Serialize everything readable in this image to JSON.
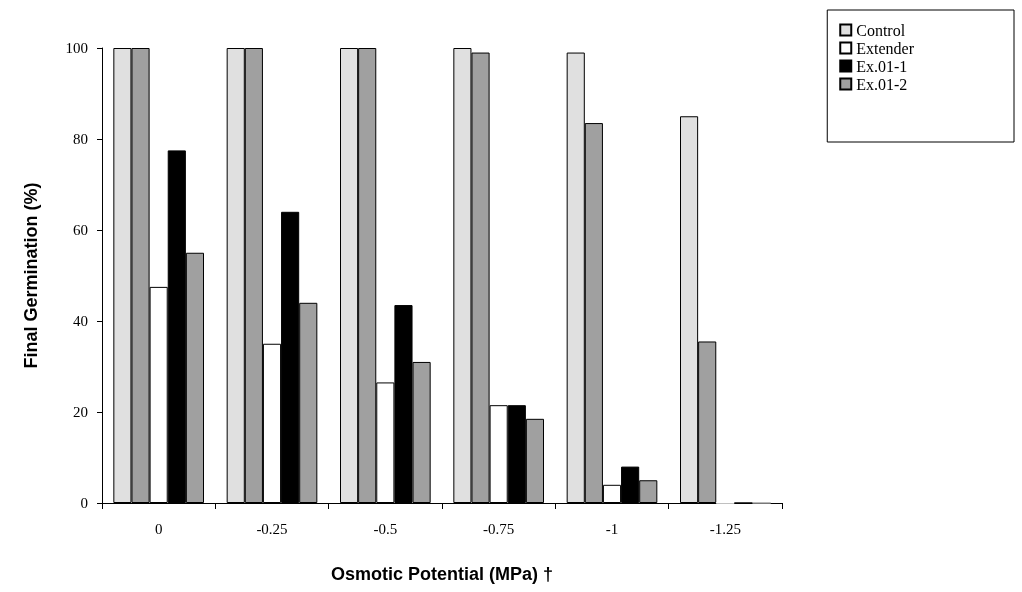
{
  "chart_data": {
    "type": "bar",
    "xlabel": "Osmotic Potential (MPa) †",
    "ylabel": "Final Germination (%)",
    "categories": [
      "0",
      "-0.25",
      "-0.5",
      "-0.75",
      "-1",
      "-1.25"
    ],
    "series": [
      {
        "name": "Control",
        "color": "#e0e0e0",
        "values": [
          100,
          100,
          100,
          100,
          99,
          85
        ]
      },
      {
        "color": "#a0a0a0",
        "values": [
          100,
          100,
          100,
          99,
          83.5,
          35.5
        ]
      },
      {
        "name": "Extender",
        "color": "#ffffff",
        "values": [
          47.5,
          35,
          26.5,
          21.5,
          4,
          0
        ]
      },
      {
        "name": "Ex.01-1",
        "color": "#000000",
        "values": [
          77.5,
          64,
          43.5,
          21.5,
          8,
          0
        ]
      },
      {
        "name": "Ex.01-2",
        "color": "#a0a0a0",
        "values": [
          55,
          44,
          31,
          18.5,
          5,
          0
        ]
      }
    ],
    "ylim": [
      0,
      100
    ],
    "yticks": [
      0,
      20,
      40,
      60,
      80,
      100
    ],
    "grid": false,
    "legend": "top right"
  }
}
